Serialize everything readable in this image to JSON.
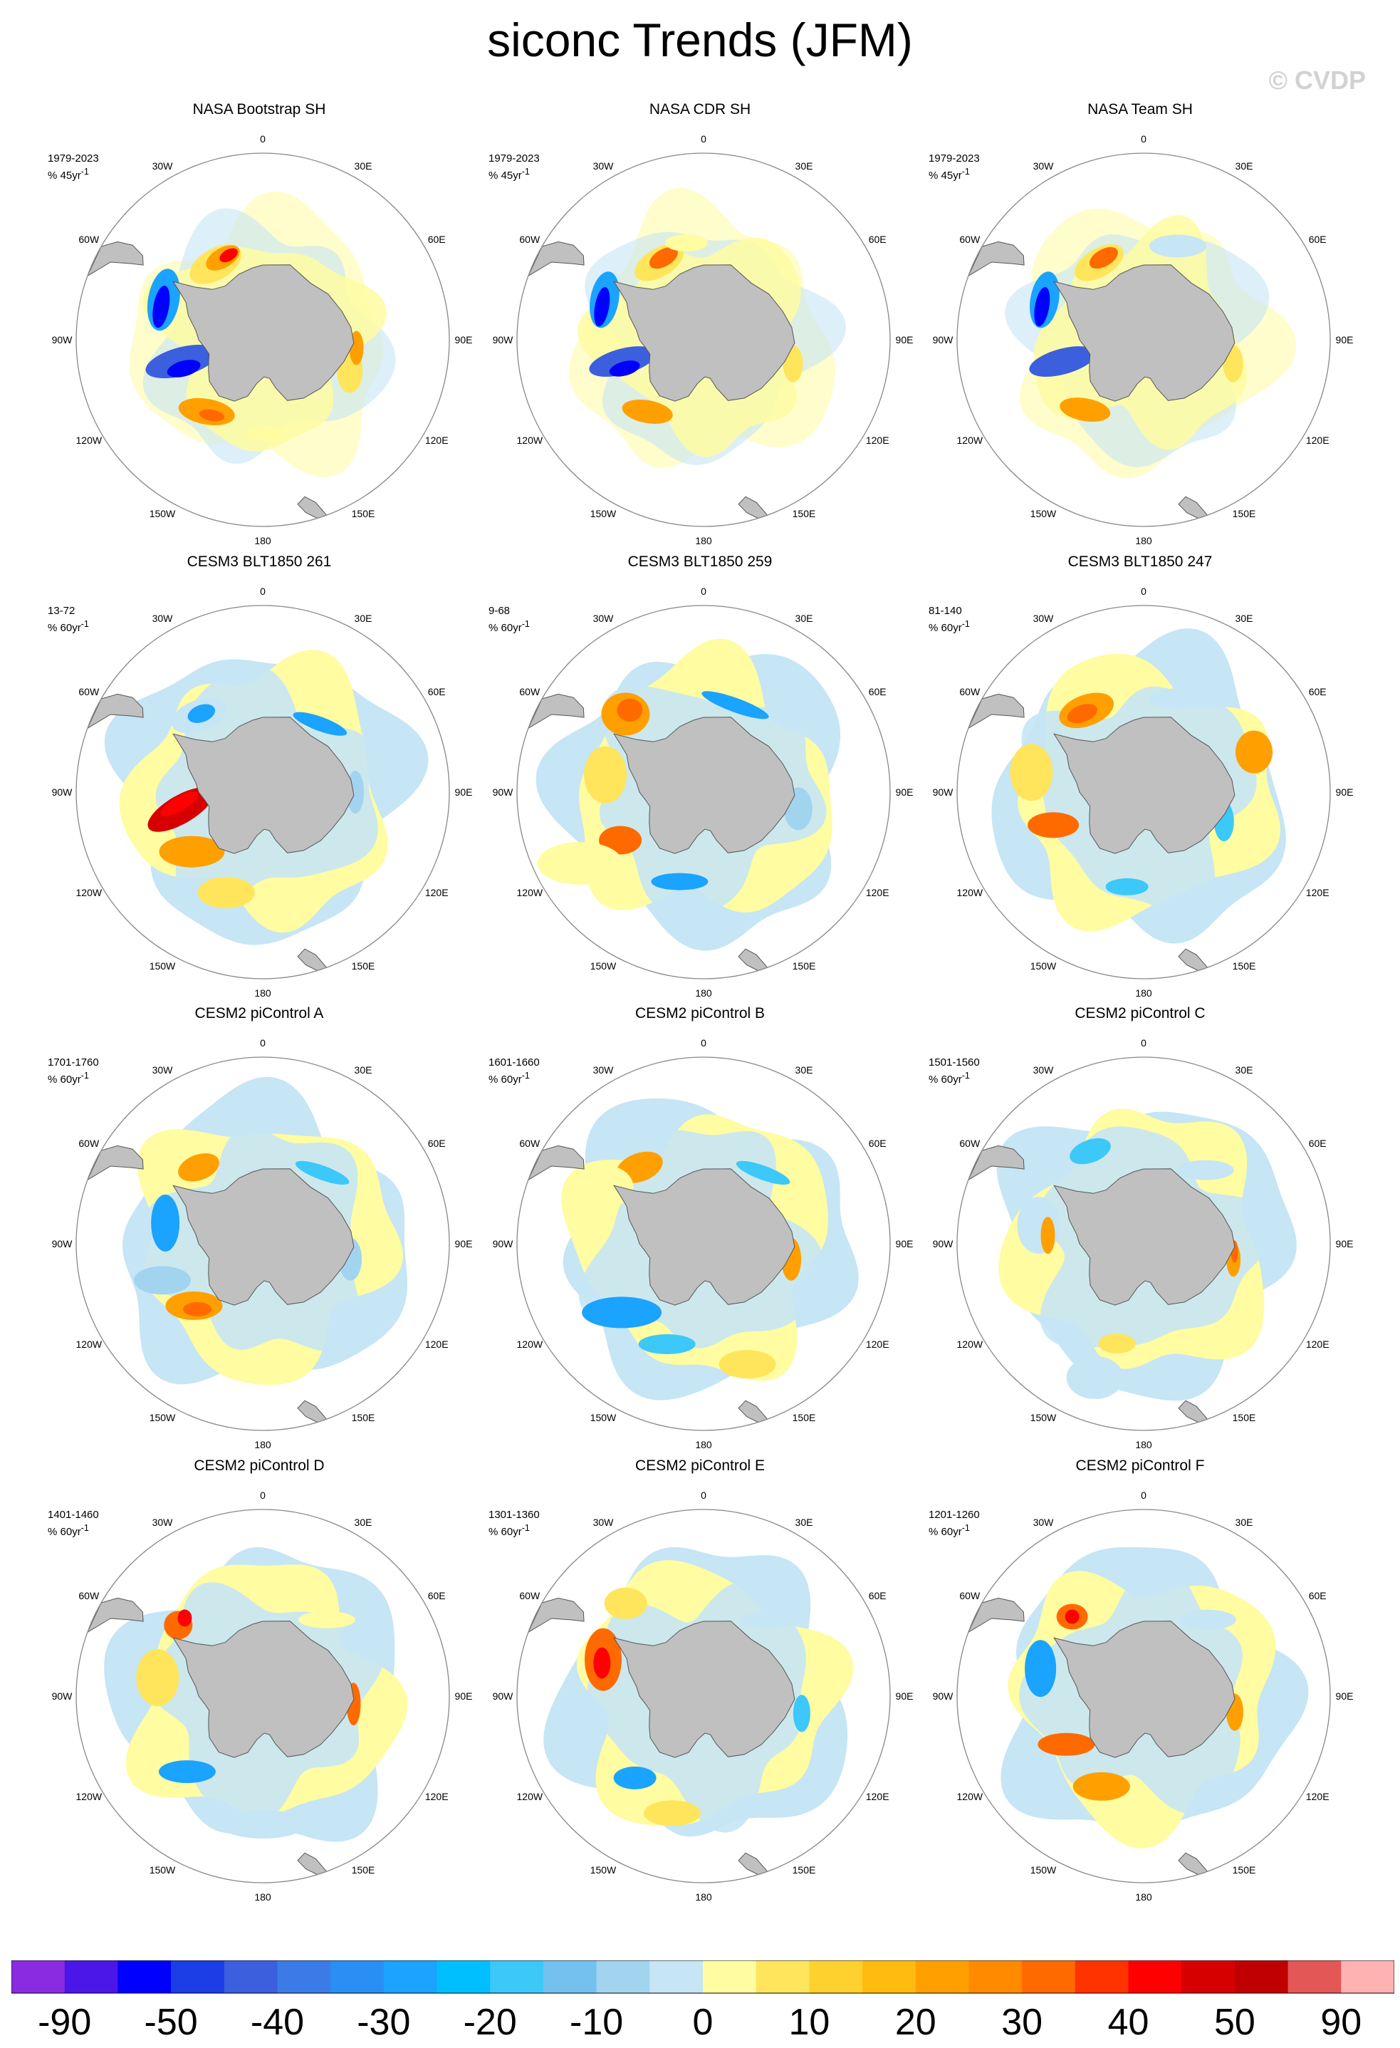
{
  "title": "siconc Trends (JFM)",
  "watermark": "© CVDP",
  "longitude_labels": {
    "lon_0": "0",
    "lon_30e": "30E",
    "lon_60e": "60E",
    "lon_90e": "90E",
    "lon_120e": "120E",
    "lon_150e": "150E",
    "lon_180": "180",
    "lon_150w": "150W",
    "lon_120w": "120W",
    "lon_90w": "90W",
    "lon_60w": "60W",
    "lon_30w": "30W"
  },
  "panels": [
    {
      "title": "NASA Bootstrap SH",
      "period": "1979-2023",
      "units": "% 45yr",
      "unit_exp": "-1",
      "style": "obs"
    },
    {
      "title": "NASA CDR SH",
      "period": "1979-2023",
      "units": "% 45yr",
      "unit_exp": "-1",
      "style": "obs"
    },
    {
      "title": "NASA Team SH",
      "period": "1979-2023",
      "units": "% 45yr",
      "unit_exp": "-1",
      "style": "obs"
    },
    {
      "title": "CESM3 BLT1850 261",
      "period": "13-72",
      "units": "% 60yr",
      "unit_exp": "-1",
      "style": "model"
    },
    {
      "title": "CESM3 BLT1850 259",
      "period": "9-68",
      "units": "% 60yr",
      "unit_exp": "-1",
      "style": "model"
    },
    {
      "title": "CESM3 BLT1850 247",
      "period": "81-140",
      "units": "% 60yr",
      "unit_exp": "-1",
      "style": "model"
    },
    {
      "title": "CESM2 piControl A",
      "period": "1701-1760",
      "units": "% 60yr",
      "unit_exp": "-1",
      "style": "model"
    },
    {
      "title": "CESM2 piControl B",
      "period": "1601-1660",
      "units": "% 60yr",
      "unit_exp": "-1",
      "style": "model"
    },
    {
      "title": "CESM2 piControl C",
      "period": "1501-1560",
      "units": "% 60yr",
      "unit_exp": "-1",
      "style": "model"
    },
    {
      "title": "CESM2 piControl D",
      "period": "1401-1460",
      "units": "% 60yr",
      "unit_exp": "-1",
      "style": "model"
    },
    {
      "title": "CESM2 piControl E",
      "period": "1301-1360",
      "units": "% 60yr",
      "unit_exp": "-1",
      "style": "model"
    },
    {
      "title": "CESM2 piControl F",
      "period": "1201-1260",
      "units": "% 60yr",
      "unit_exp": "-1",
      "style": "model"
    }
  ],
  "colorbar": {
    "colors": [
      "#8a2be2",
      "#4b17e8",
      "#0000ff",
      "#1c3ee6",
      "#3b5fdd",
      "#3a7be8",
      "#2a8ff5",
      "#1aa3ff",
      "#00bfff",
      "#3cc8f8",
      "#74c0ef",
      "#a2d4f0",
      "#c6e5f5",
      "#fffca2",
      "#ffe55c",
      "#ffd12e",
      "#ffbb10",
      "#ffa000",
      "#ff8a00",
      "#ff6a00",
      "#ff3300",
      "#ff0000",
      "#d70000",
      "#c00000",
      "#e45757",
      "#ffb2b2"
    ],
    "tick_labels": [
      "-90",
      "-50",
      "-40",
      "-30",
      "-20",
      "-10",
      "0",
      "10",
      "20",
      "30",
      "40",
      "50",
      "90"
    ]
  },
  "colors": {
    "land": "#c0c0c0",
    "coastline": "#555555",
    "globe_edge": "#888888"
  }
}
